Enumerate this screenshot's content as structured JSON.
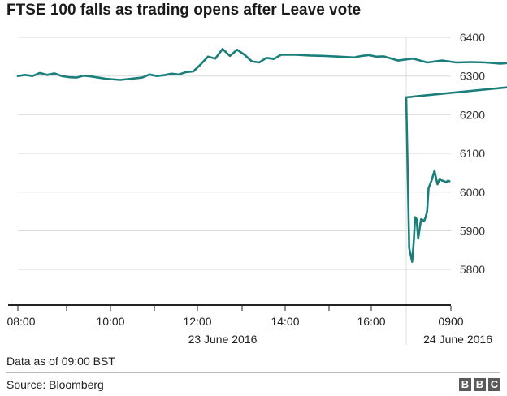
{
  "chart_data": {
    "type": "line",
    "title": "FTSE 100 falls as trading opens after Leave vote",
    "xlabel": "",
    "ylabel": "",
    "ylim": [
      5750,
      6400
    ],
    "y_ticks": [
      6400,
      6300,
      6200,
      6100,
      6000,
      5900,
      5800
    ],
    "x_tick_labels": [
      "08:00",
      "10:00",
      "12:00",
      "14:00",
      "16:00",
      "0900"
    ],
    "date_labels": [
      "23 June 2016",
      "24 June 2016"
    ],
    "grid": true,
    "series": [
      {
        "name": "",
        "color": "#1a7f7a",
        "x": [
          "23 Jun 08:00",
          "23 Jun 08:05",
          "23 Jun 08:10",
          "23 Jun 08:15",
          "23 Jun 08:20",
          "23 Jun 08:25",
          "23 Jun 08:30",
          "23 Jun 08:35",
          "23 Jun 08:40",
          "23 Jun 08:45",
          "23 Jun 08:50",
          "23 Jun 09:00",
          "23 Jun 09:10",
          "23 Jun 09:15",
          "23 Jun 09:20",
          "23 Jun 09:25",
          "23 Jun 09:30",
          "23 Jun 09:35",
          "23 Jun 09:40",
          "23 Jun 09:45",
          "23 Jun 09:50",
          "23 Jun 09:55",
          "23 Jun 10:00",
          "23 Jun 10:05",
          "23 Jun 10:10",
          "23 Jun 10:15",
          "23 Jun 10:20",
          "23 Jun 10:25",
          "23 Jun 10:30",
          "23 Jun 10:35",
          "23 Jun 10:40",
          "23 Jun 10:45",
          "23 Jun 10:50",
          "23 Jun 10:55",
          "23 Jun 11:00",
          "23 Jun 11:10",
          "23 Jun 11:20",
          "23 Jun 11:30",
          "23 Jun 11:40",
          "23 Jun 11:50",
          "23 Jun 11:55",
          "23 Jun 12:00",
          "23 Jun 12:05",
          "23 Jun 12:10",
          "23 Jun 12:20",
          "23 Jun 12:30",
          "23 Jun 12:40",
          "23 Jun 12:50",
          "23 Jun 13:00",
          "23 Jun 13:10",
          "23 Jun 13:20",
          "23 Jun 13:30",
          "23 Jun 13:40",
          "23 Jun 13:50",
          "23 Jun 14:00",
          "23 Jun 14:10",
          "23 Jun 14:20",
          "23 Jun 14:30",
          "23 Jun 14:40",
          "23 Jun 14:50",
          "23 Jun 15:00",
          "23 Jun 15:05",
          "23 Jun 15:10",
          "23 Jun 15:15",
          "23 Jun 15:20",
          "23 Jun 15:25",
          "23 Jun 15:30",
          "23 Jun 15:35",
          "23 Jun 15:40",
          "23 Jun 15:45",
          "23 Jun 15:50",
          "23 Jun 15:55",
          "23 Jun 16:00",
          "23 Jun 16:05",
          "23 Jun 16:10",
          "23 Jun 16:15",
          "23 Jun 16:20",
          "23 Jun 16:25",
          "23 Jun 16:30",
          "23 Jun 16:35",
          "24 Jun 08:00",
          "24 Jun 08:02",
          "24 Jun 08:04",
          "24 Jun 08:08",
          "24 Jun 08:10",
          "24 Jun 08:12",
          "24 Jun 08:14",
          "24 Jun 08:16",
          "24 Jun 08:18",
          "24 Jun 08:20",
          "24 Jun 08:22",
          "24 Jun 08:24",
          "24 Jun 08:26",
          "24 Jun 08:28",
          "24 Jun 08:30",
          "24 Jun 08:34",
          "24 Jun 08:38",
          "24 Jun 08:42",
          "24 Jun 08:45",
          "24 Jun 08:48",
          "24 Jun 08:51",
          "24 Jun 08:54",
          "24 Jun 08:56",
          "24 Jun 08:58"
        ],
        "values": [
          6300,
          6303,
          6300,
          6308,
          6303,
          6307,
          6300,
          6297,
          6296,
          6301,
          6299,
          6293,
          6290,
          6292,
          6294,
          6296,
          6304,
          6300,
          6302,
          6306,
          6304,
          6310,
          6312,
          6330,
          6350,
          6345,
          6370,
          6352,
          6368,
          6355,
          6338,
          6335,
          6347,
          6344,
          6355,
          6355,
          6353,
          6352,
          6350,
          6348,
          6352,
          6354,
          6350,
          6351,
          6340,
          6345,
          6335,
          6340,
          6335,
          6336,
          6335,
          6332,
          6335,
          6337,
          6333,
          6330,
          6325,
          6328,
          6320,
          6322,
          6312,
          6315,
          6305,
          6302,
          6290,
          6285,
          6295,
          6300,
          6285,
          6292,
          6290,
          6275,
          6285,
          6290,
          6285,
          6300,
          6305,
          6310,
          6300,
          6338,
          6245,
          6055,
          5855,
          5820,
          5870,
          5935,
          5930,
          5880,
          5905,
          5930,
          5928,
          5925,
          5935,
          5950,
          6010,
          6030,
          6055,
          6020,
          6035,
          6030,
          6028,
          6025,
          6030,
          6028
        ]
      }
    ]
  },
  "note": "Data as of 09:00 BST",
  "source": "Source: Bloomberg",
  "logo_letters": [
    "B",
    "B",
    "C"
  ]
}
